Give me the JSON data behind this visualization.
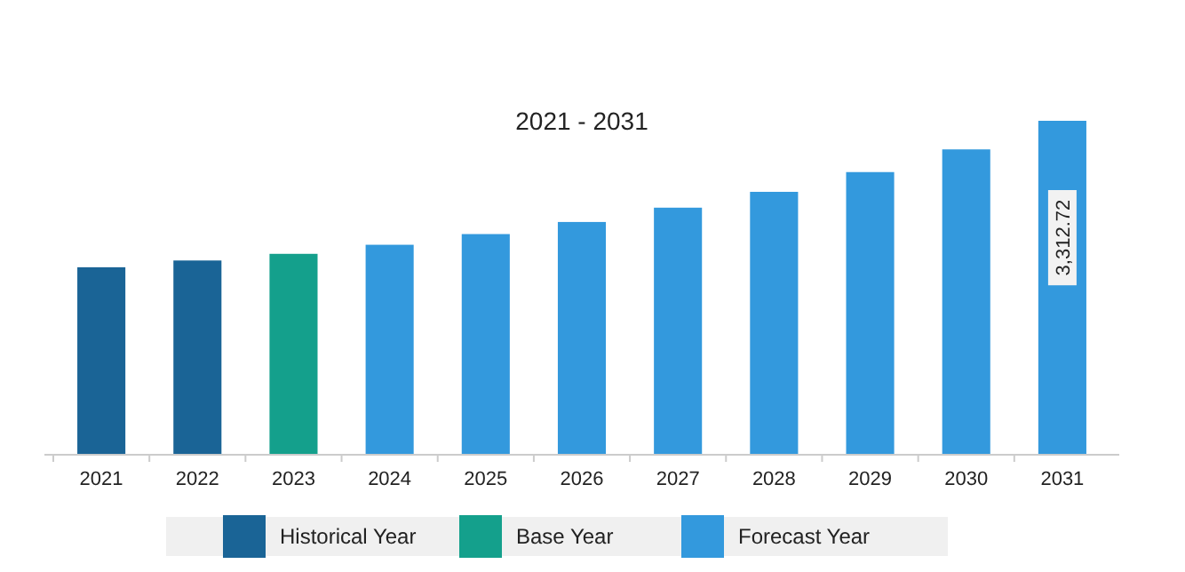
{
  "chart_data": {
    "type": "bar",
    "title": "2021 - 2031",
    "categories": [
      "2021",
      "2022",
      "2023",
      "2024",
      "2025",
      "2026",
      "2027",
      "2028",
      "2029",
      "2030",
      "2031"
    ],
    "series": [
      {
        "name": "Historical Year",
        "color": "#1a6496",
        "values": [
          1860,
          1927,
          null,
          null,
          null,
          null,
          null,
          null,
          null,
          null,
          null
        ]
      },
      {
        "name": "Base Year",
        "color": "#14a08c",
        "values": [
          null,
          null,
          1993,
          null,
          null,
          null,
          null,
          null,
          null,
          null,
          null
        ]
      },
      {
        "name": "Forecast Year",
        "color": "#3399dd",
        "values": [
          null,
          null,
          null,
          2083,
          2189,
          2309,
          2451,
          2608,
          2804,
          3029,
          3312.72
        ],
        "value_labels": [
          null,
          null,
          null,
          null,
          null,
          null,
          null,
          null,
          null,
          null,
          "3,312.72"
        ]
      }
    ],
    "ylim": [
      0,
      3312.72
    ],
    "tick_labels": "x",
    "legend": "bottom"
  }
}
